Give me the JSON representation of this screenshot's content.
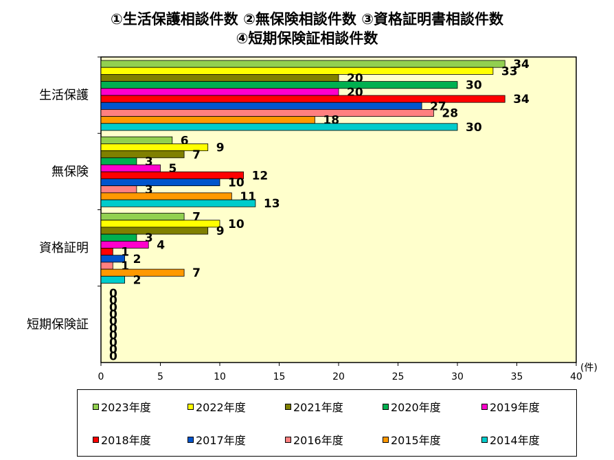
{
  "chart_data": {
    "type": "bar",
    "orientation": "horizontal",
    "title_lines": [
      "①生活保護相談件数 ②無保険相談件数 ③資格証明書相談件数",
      "④短期保険証相談件数"
    ],
    "categories": [
      "生活保護",
      "無保険",
      "資格証明",
      "短期保険証"
    ],
    "series": [
      {
        "name": "2023年度",
        "color": "#92d050",
        "values": [
          34,
          6,
          7,
          0
        ]
      },
      {
        "name": "2022年度",
        "color": "#ffff00",
        "values": [
          33,
          9,
          10,
          0
        ]
      },
      {
        "name": "2021年度",
        "color": "#808000",
        "values": [
          20,
          7,
          9,
          0
        ]
      },
      {
        "name": "2020年度",
        "color": "#00b050",
        "values": [
          30,
          3,
          3,
          0
        ]
      },
      {
        "name": "2019年度",
        "color": "#ff00cc",
        "values": [
          20,
          5,
          4,
          0
        ]
      },
      {
        "name": "2018年度",
        "color": "#ff0000",
        "values": [
          34,
          12,
          1,
          0
        ]
      },
      {
        "name": "2017年度",
        "color": "#0055cc",
        "values": [
          27,
          10,
          2,
          0
        ]
      },
      {
        "name": "2016年度",
        "color": "#ff8080",
        "values": [
          28,
          3,
          1,
          0
        ]
      },
      {
        "name": "2015年度",
        "color": "#ff9900",
        "values": [
          18,
          11,
          7,
          0
        ]
      },
      {
        "name": "2014年度",
        "color": "#00cccc",
        "values": [
          30,
          13,
          2,
          0
        ]
      }
    ],
    "xlim": [
      0,
      40
    ],
    "x_ticks": [
      "0",
      "5",
      "10",
      "15",
      "20",
      "25",
      "30",
      "35",
      "40"
    ],
    "x_unit": "(件)",
    "plot_background": "#ffffcc",
    "grid": false,
    "legend_position": "bottom"
  }
}
